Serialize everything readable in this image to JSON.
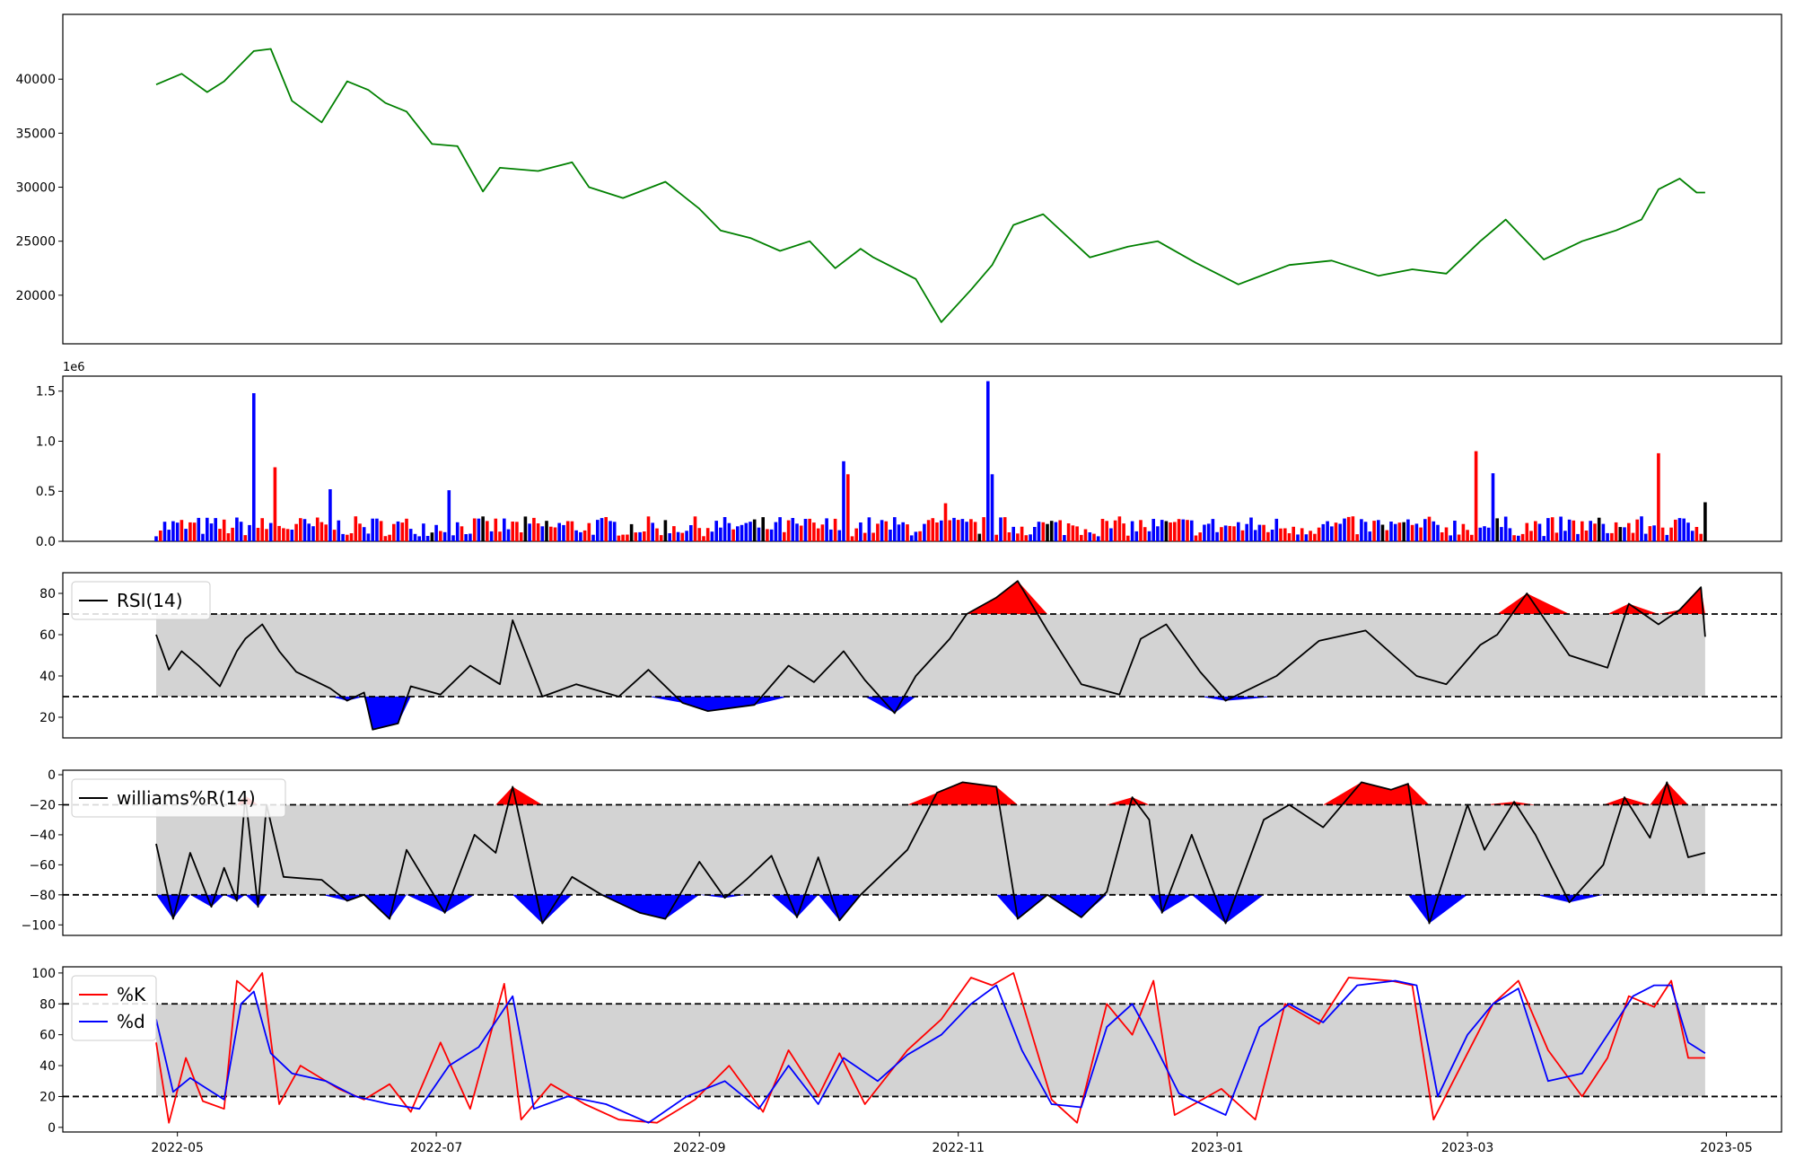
{
  "chart_data": [
    {
      "type": "line",
      "panel": "price",
      "color": "#008000",
      "ylim": [
        15500,
        46000
      ],
      "yticks": [
        20000,
        25000,
        30000,
        35000,
        40000
      ],
      "ytick_labels": [
        "20000",
        "25000",
        "30000",
        "35000",
        "40000"
      ],
      "x": [
        "2022-04-26",
        "2022-05-02",
        "2022-05-08",
        "2022-05-12",
        "2022-05-19",
        "2022-05-23",
        "2022-05-28",
        "2022-06-04",
        "2022-06-10",
        "2022-06-15",
        "2022-06-19",
        "2022-06-24",
        "2022-06-30",
        "2022-07-06",
        "2022-07-12",
        "2022-07-16",
        "2022-07-25",
        "2022-08-02",
        "2022-08-06",
        "2022-08-14",
        "2022-08-24",
        "2022-09-01",
        "2022-09-06",
        "2022-09-13",
        "2022-09-20",
        "2022-09-27",
        "2022-10-03",
        "2022-10-09",
        "2022-10-12",
        "2022-10-22",
        "2022-10-28",
        "2022-11-04",
        "2022-11-09",
        "2022-11-14",
        "2022-11-21",
        "2022-12-02",
        "2022-12-11",
        "2022-12-18",
        "2022-12-27",
        "2023-01-06",
        "2023-01-18",
        "2023-01-28",
        "2023-02-08",
        "2023-02-16",
        "2023-02-24",
        "2023-03-04",
        "2023-03-10",
        "2023-03-19",
        "2023-03-28",
        "2023-04-05",
        "2023-04-11",
        "2023-04-15",
        "2023-04-20",
        "2023-04-24",
        "2023-04-26"
      ],
      "values": [
        39500,
        40500,
        38800,
        39800,
        42600,
        42800,
        38000,
        36000,
        39800,
        39000,
        37800,
        37000,
        34000,
        33800,
        29600,
        31800,
        31500,
        32300,
        30000,
        29000,
        30500,
        28000,
        26000,
        25300,
        24100,
        25000,
        22500,
        24300,
        23500,
        21500,
        17500,
        20500,
        22800,
        26500,
        27500,
        23500,
        24500,
        25000,
        23000,
        21000,
        22800,
        23200,
        21800,
        22400,
        22000,
        25000,
        27000,
        23300,
        25000,
        26000,
        27000,
        29800,
        30800,
        29500,
        29500
      ]
    },
    {
      "type": "bar",
      "panel": "volume",
      "offset_label": "1e6",
      "ylim": [
        0,
        1.65
      ],
      "yticks": [
        0.0,
        0.5,
        1.0,
        1.5
      ],
      "ytick_labels": [
        "0.0",
        "0.5",
        "1.0",
        "1.5"
      ],
      "colors": {
        "up": "#ff0000",
        "down": "#0000ff",
        "flat": "#000000"
      },
      "highlights": [
        {
          "x": "2022-05-19",
          "value": 1.48,
          "color": "#0000ff"
        },
        {
          "x": "2022-05-24",
          "value": 0.74,
          "color": "#ff0000"
        },
        {
          "x": "2022-06-06",
          "value": 0.52,
          "color": "#0000ff"
        },
        {
          "x": "2022-07-04",
          "value": 0.51,
          "color": "#0000ff"
        },
        {
          "x": "2022-10-05",
          "value": 0.8,
          "color": "#0000ff"
        },
        {
          "x": "2022-10-06",
          "value": 0.67,
          "color": "#ff0000"
        },
        {
          "x": "2022-10-29",
          "value": 0.38,
          "color": "#ff0000"
        },
        {
          "x": "2022-11-08",
          "value": 1.6,
          "color": "#0000ff"
        },
        {
          "x": "2022-11-09",
          "value": 0.67,
          "color": "#0000ff"
        },
        {
          "x": "2023-03-03",
          "value": 0.9,
          "color": "#ff0000"
        },
        {
          "x": "2023-03-07",
          "value": 0.68,
          "color": "#0000ff"
        },
        {
          "x": "2023-04-15",
          "value": 0.88,
          "color": "#ff0000"
        },
        {
          "x": "2023-04-26",
          "value": 0.39,
          "color": "#000000"
        }
      ]
    },
    {
      "type": "line",
      "panel": "rsi",
      "legend": [
        "RSI(14)"
      ],
      "color": "#000000",
      "ylim": [
        10,
        90
      ],
      "yticks": [
        20,
        40,
        60,
        80
      ],
      "ytick_labels": [
        "20",
        "40",
        "60",
        "80"
      ],
      "thresholds": {
        "upper": 70,
        "lower": 30
      },
      "fill_colors": {
        "band": "#d3d3d3",
        "overbought": "#ff0000",
        "oversold": "#0000ff"
      },
      "x": [
        "2022-04-26",
        "2022-04-29",
        "2022-05-02",
        "2022-05-06",
        "2022-05-11",
        "2022-05-15",
        "2022-05-17",
        "2022-05-21",
        "2022-05-25",
        "2022-05-29",
        "2022-06-06",
        "2022-06-10",
        "2022-06-14",
        "2022-06-16",
        "2022-06-22",
        "2022-06-25",
        "2022-07-02",
        "2022-07-09",
        "2022-07-16",
        "2022-07-19",
        "2022-07-26",
        "2022-08-03",
        "2022-08-13",
        "2022-08-20",
        "2022-08-28",
        "2022-09-03",
        "2022-09-14",
        "2022-09-22",
        "2022-09-28",
        "2022-10-05",
        "2022-10-10",
        "2022-10-17",
        "2022-10-22",
        "2022-10-30",
        "2022-11-03",
        "2022-11-10",
        "2022-11-15",
        "2022-11-22",
        "2022-11-30",
        "2022-12-09",
        "2022-12-14",
        "2022-12-20",
        "2022-12-28",
        "2023-01-03",
        "2023-01-15",
        "2023-01-25",
        "2023-02-05",
        "2023-02-17",
        "2023-02-24",
        "2023-03-04",
        "2023-03-08",
        "2023-03-15",
        "2023-03-25",
        "2023-04-03",
        "2023-04-08",
        "2023-04-15",
        "2023-04-20",
        "2023-04-25",
        "2023-04-26"
      ],
      "values": [
        60,
        43,
        52,
        45,
        35,
        52,
        58,
        65,
        52,
        42,
        34,
        28,
        32,
        14,
        17,
        35,
        31,
        45,
        36,
        67,
        30,
        36,
        30,
        43,
        27,
        23,
        26,
        45,
        37,
        52,
        38,
        22,
        40,
        58,
        70,
        78,
        86,
        62,
        36,
        31,
        58,
        65,
        42,
        28,
        40,
        57,
        62,
        40,
        36,
        55,
        60,
        80,
        50,
        44,
        75,
        65,
        72,
        83,
        59
      ]
    },
    {
      "type": "line",
      "panel": "williams_r",
      "legend": [
        "williams%R(14)"
      ],
      "color": "#000000",
      "ylim": [
        -107,
        3
      ],
      "yticks": [
        -100,
        -80,
        -60,
        -40,
        -20,
        0
      ],
      "ytick_labels": [
        "−100",
        "−80",
        "−60",
        "−40",
        "−20",
        "0"
      ],
      "thresholds": {
        "upper": -20,
        "lower": -80
      },
      "fill_colors": {
        "band": "#d3d3d3",
        "overbought": "#ff0000",
        "oversold": "#0000ff"
      },
      "x": [
        "2022-04-26",
        "2022-04-30",
        "2022-05-04",
        "2022-05-09",
        "2022-05-12",
        "2022-05-15",
        "2022-05-17",
        "2022-05-20",
        "2022-05-22",
        "2022-05-26",
        "2022-06-04",
        "2022-06-10",
        "2022-06-14",
        "2022-06-20",
        "2022-06-24",
        "2022-07-03",
        "2022-07-10",
        "2022-07-15",
        "2022-07-19",
        "2022-07-26",
        "2022-08-02",
        "2022-08-09",
        "2022-08-18",
        "2022-08-24",
        "2022-09-01",
        "2022-09-07",
        "2022-09-12",
        "2022-09-18",
        "2022-09-24",
        "2022-09-29",
        "2022-10-04",
        "2022-10-09",
        "2022-10-20",
        "2022-10-27",
        "2022-11-02",
        "2022-11-10",
        "2022-11-15",
        "2022-11-22",
        "2022-11-30",
        "2022-12-06",
        "2022-12-12",
        "2022-12-16",
        "2022-12-19",
        "2022-12-26",
        "2023-01-03",
        "2023-01-12",
        "2023-01-18",
        "2023-01-26",
        "2023-02-04",
        "2023-02-11",
        "2023-02-15",
        "2023-02-20",
        "2023-03-01",
        "2023-03-05",
        "2023-03-12",
        "2023-03-17",
        "2023-03-25",
        "2023-04-02",
        "2023-04-07",
        "2023-04-13",
        "2023-04-17",
        "2023-04-22",
        "2023-04-26"
      ],
      "values": [
        -46,
        -96,
        -52,
        -88,
        -62,
        -84,
        -14,
        -88,
        -20,
        -68,
        -70,
        -84,
        -80,
        -96,
        -50,
        -92,
        -40,
        -52,
        -8,
        -99,
        -68,
        -80,
        -92,
        -96,
        -58,
        -82,
        -70,
        -54,
        -95,
        -55,
        -97,
        -80,
        -50,
        -12,
        -5,
        -8,
        -96,
        -80,
        -95,
        -78,
        -15,
        -30,
        -92,
        -40,
        -99,
        -30,
        -20,
        -35,
        -5,
        -10,
        -6,
        -99,
        -20,
        -50,
        -18,
        -40,
        -85,
        -60,
        -15,
        -42,
        -5,
        -55,
        -52
      ]
    },
    {
      "type": "line",
      "panel": "stochastic",
      "ylim": [
        -3,
        104
      ],
      "yticks": [
        0,
        20,
        40,
        60,
        80,
        100
      ],
      "ytick_labels": [
        "0",
        "20",
        "40",
        "60",
        "80",
        "100"
      ],
      "thresholds": {
        "upper": 80,
        "lower": 20
      },
      "band_color": "#d3d3d3",
      "xticks": [
        "2022-05-01",
        "2022-07-01",
        "2022-09-01",
        "2022-11-01",
        "2023-01-01",
        "2023-03-01",
        "2023-05-01"
      ],
      "xtick_labels": [
        "2022-05",
        "2022-07",
        "2022-09",
        "2022-11",
        "2023-01",
        "2023-03",
        "2023-05"
      ],
      "series": [
        {
          "name": "%K",
          "color": "#ff0000",
          "x": [
            "2022-04-26",
            "2022-04-29",
            "2022-05-03",
            "2022-05-07",
            "2022-05-12",
            "2022-05-15",
            "2022-05-18",
            "2022-05-21",
            "2022-05-25",
            "2022-05-30",
            "2022-06-08",
            "2022-06-14",
            "2022-06-20",
            "2022-06-25",
            "2022-07-02",
            "2022-07-09",
            "2022-07-17",
            "2022-07-21",
            "2022-07-28",
            "2022-08-05",
            "2022-08-13",
            "2022-08-22",
            "2022-08-31",
            "2022-09-08",
            "2022-09-16",
            "2022-09-22",
            "2022-09-29",
            "2022-10-04",
            "2022-10-10",
            "2022-10-20",
            "2022-10-28",
            "2022-11-04",
            "2022-11-09",
            "2022-11-14",
            "2022-11-23",
            "2022-11-29",
            "2022-12-06",
            "2022-12-12",
            "2022-12-17",
            "2022-12-22",
            "2023-01-02",
            "2023-01-10",
            "2023-01-17",
            "2023-01-25",
            "2023-02-01",
            "2023-02-11",
            "2023-02-16",
            "2023-02-21",
            "2023-03-01",
            "2023-03-07",
            "2023-03-13",
            "2023-03-20",
            "2023-03-28",
            "2023-04-03",
            "2023-04-08",
            "2023-04-14",
            "2023-04-18",
            "2023-04-22",
            "2023-04-26"
          ],
          "values": [
            55,
            3,
            45,
            17,
            12,
            95,
            88,
            100,
            15,
            40,
            25,
            18,
            28,
            10,
            55,
            12,
            93,
            5,
            28,
            15,
            5,
            3,
            18,
            40,
            10,
            50,
            20,
            48,
            15,
            50,
            70,
            97,
            92,
            100,
            18,
            3,
            80,
            60,
            95,
            8,
            25,
            5,
            80,
            67,
            97,
            95,
            92,
            5,
            48,
            80,
            95,
            50,
            20,
            45,
            85,
            78,
            95,
            45,
            45
          ]
        },
        {
          "name": "%d",
          "color": "#0000ff",
          "x": [
            "2022-04-26",
            "2022-04-30",
            "2022-05-04",
            "2022-05-08",
            "2022-05-12",
            "2022-05-16",
            "2022-05-19",
            "2022-05-23",
            "2022-05-28",
            "2022-06-05",
            "2022-06-12",
            "2022-06-20",
            "2022-06-27",
            "2022-07-04",
            "2022-07-11",
            "2022-07-19",
            "2022-07-24",
            "2022-08-01",
            "2022-08-10",
            "2022-08-20",
            "2022-08-29",
            "2022-09-07",
            "2022-09-15",
            "2022-09-22",
            "2022-09-29",
            "2022-10-05",
            "2022-10-13",
            "2022-10-20",
            "2022-10-28",
            "2022-11-04",
            "2022-11-10",
            "2022-11-16",
            "2022-11-23",
            "2022-11-30",
            "2022-12-06",
            "2022-12-12",
            "2022-12-17",
            "2022-12-23",
            "2023-01-03",
            "2023-01-11",
            "2023-01-18",
            "2023-01-26",
            "2023-02-03",
            "2023-02-12",
            "2023-02-17",
            "2023-02-22",
            "2023-03-01",
            "2023-03-07",
            "2023-03-13",
            "2023-03-20",
            "2023-03-28",
            "2023-04-03",
            "2023-04-09",
            "2023-04-14",
            "2023-04-18",
            "2023-04-22",
            "2023-04-26"
          ],
          "values": [
            70,
            23,
            32,
            25,
            18,
            80,
            88,
            48,
            35,
            30,
            20,
            15,
            12,
            40,
            52,
            85,
            12,
            20,
            15,
            3,
            20,
            30,
            12,
            40,
            15,
            45,
            30,
            47,
            60,
            80,
            92,
            50,
            15,
            13,
            65,
            80,
            55,
            22,
            8,
            65,
            80,
            68,
            92,
            95,
            92,
            20,
            60,
            80,
            90,
            30,
            35,
            60,
            85,
            92,
            92,
            55,
            48
          ]
        }
      ]
    }
  ]
}
